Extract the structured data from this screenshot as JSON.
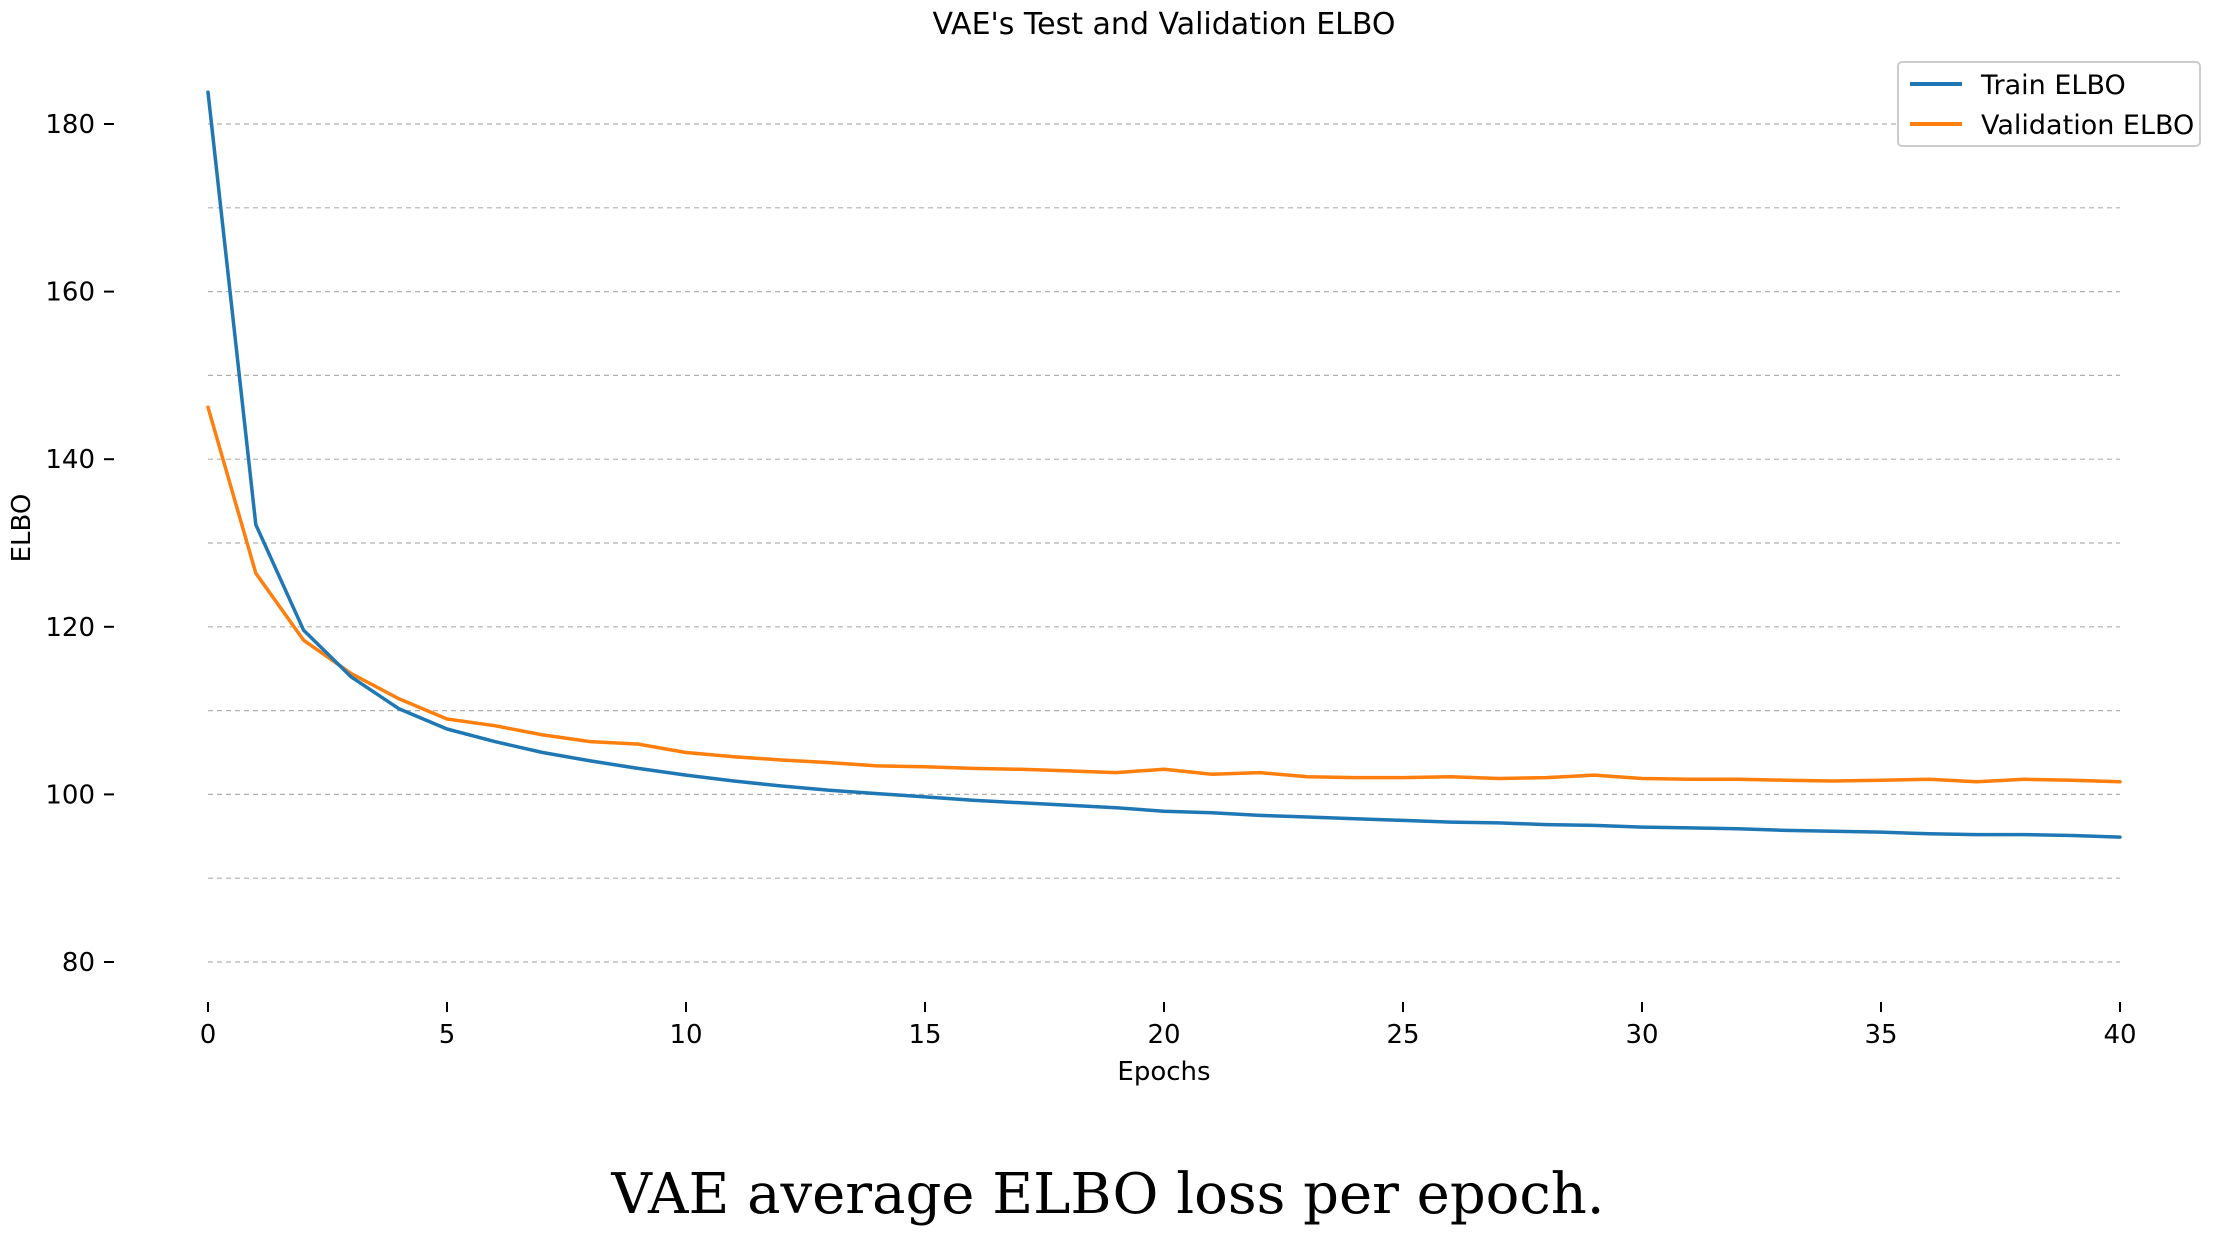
{
  "caption": "VAE average ELBO loss per epoch.",
  "colors": {
    "train": "#1f77b4",
    "validation": "#ff7f0e",
    "grid": "#b0b0b0",
    "text": "#000000"
  },
  "chart_data": {
    "type": "line",
    "title": "VAE's Test and Validation ELBO",
    "xlabel": "Epochs",
    "ylabel": "ELBO",
    "xlim": [
      0,
      40
    ],
    "ylim": [
      80,
      185
    ],
    "xticks": [
      0,
      5,
      10,
      15,
      20,
      25,
      30,
      35,
      40
    ],
    "xtick_labels": [
      "0",
      "5",
      "10",
      "15",
      "20",
      "25",
      "30",
      "35",
      "40"
    ],
    "yticks": [
      80,
      100,
      120,
      140,
      160,
      180
    ],
    "ytick_labels": [
      "80",
      "100",
      "120",
      "140",
      "160",
      "180"
    ],
    "grid": "horizontal dashed",
    "legend_position": "top-right",
    "series": [
      {
        "name": "Train ELBO",
        "color": "#1f77b4",
        "x": [
          0,
          1,
          2,
          3,
          4,
          5,
          6,
          7,
          8,
          9,
          10,
          11,
          12,
          13,
          14,
          15,
          16,
          17,
          18,
          19,
          20,
          21,
          22,
          23,
          24,
          25,
          26,
          27,
          28,
          29,
          30,
          31,
          32,
          33,
          34,
          35,
          36,
          37,
          38,
          39,
          40
        ],
        "values": [
          183.8,
          132.2,
          119.6,
          114.0,
          110.2,
          107.8,
          106.3,
          105.0,
          104.0,
          103.1,
          102.3,
          101.6,
          101.0,
          100.5,
          100.1,
          99.7,
          99.3,
          99.0,
          98.7,
          98.4,
          98.0,
          97.8,
          97.5,
          97.3,
          97.1,
          96.9,
          96.7,
          96.6,
          96.4,
          96.3,
          96.1,
          96.0,
          95.9,
          95.7,
          95.6,
          95.5,
          95.3,
          95.2,
          95.2,
          95.1,
          94.9
        ]
      },
      {
        "name": "Validation ELBO",
        "color": "#ff7f0e",
        "x": [
          0,
          1,
          2,
          3,
          4,
          5,
          6,
          7,
          8,
          9,
          10,
          11,
          12,
          13,
          14,
          15,
          16,
          17,
          18,
          19,
          20,
          21,
          22,
          23,
          24,
          25,
          26,
          27,
          28,
          29,
          30,
          31,
          32,
          33,
          34,
          35,
          36,
          37,
          38,
          39,
          40
        ],
        "values": [
          146.2,
          126.4,
          118.4,
          114.4,
          111.4,
          109.0,
          108.2,
          107.1,
          106.3,
          106.0,
          105.0,
          104.5,
          104.1,
          103.8,
          103.4,
          103.3,
          103.1,
          103.0,
          102.8,
          102.6,
          103.0,
          102.4,
          102.6,
          102.1,
          102.0,
          102.0,
          102.1,
          101.9,
          102.0,
          102.3,
          101.9,
          101.8,
          101.8,
          101.7,
          101.6,
          101.7,
          101.8,
          101.5,
          101.8,
          101.7,
          101.5
        ]
      }
    ]
  }
}
